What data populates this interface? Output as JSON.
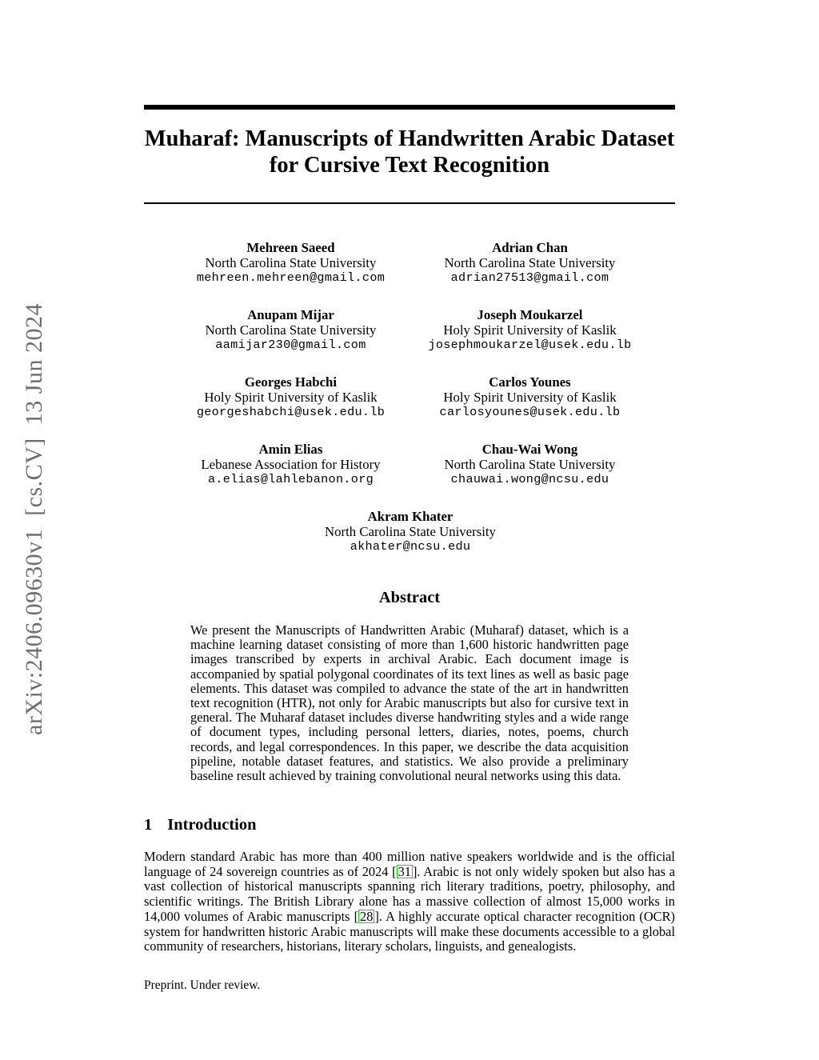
{
  "arxiv_stamp": "arXiv:2406.09630v1  [cs.CV]  13 Jun 2024",
  "title": {
    "line1": "Muharaf: Manuscripts of Handwritten Arabic Dataset",
    "line2": "for Cursive Text Recognition"
  },
  "authors": [
    {
      "name": "Mehreen Saeed",
      "affiliation": "North Carolina State University",
      "email": "mehreen.mehreen@gmail.com"
    },
    {
      "name": "Adrian Chan",
      "affiliation": "North Carolina State University",
      "email": "adrian27513@gmail.com"
    },
    {
      "name": "Anupam Mijar",
      "affiliation": "North Carolina State University",
      "email": "aamijar230@gmail.com"
    },
    {
      "name": "Joseph Moukarzel",
      "affiliation": "Holy Spirit University of Kaslik",
      "email": "josephmoukarzel@usek.edu.lb"
    },
    {
      "name": "Georges Habchi",
      "affiliation": "Holy Spirit University of Kaslik",
      "email": "georgeshabchi@usek.edu.lb"
    },
    {
      "name": "Carlos Younes",
      "affiliation": "Holy Spirit University of Kaslik",
      "email": "carlosyounes@usek.edu.lb"
    },
    {
      "name": "Amin Elias",
      "affiliation": "Lebanese Association for History",
      "email": "a.elias@lahlebanon.org"
    },
    {
      "name": "Chau-Wai Wong",
      "affiliation": "North Carolina State University",
      "email": "chauwai.wong@ncsu.edu"
    },
    {
      "name": "Akram Khater",
      "affiliation": "North Carolina State University",
      "email": "akhater@ncsu.edu"
    }
  ],
  "abstract": {
    "heading": "Abstract",
    "text": "We present the Manuscripts of Handwritten Arabic (Muharaf) dataset, which is a machine learning dataset consisting of more than 1,600 historic handwritten page images transcribed by experts in archival Arabic. Each document image is accompanied by spatial polygonal coordinates of its text lines as well as basic page elements. This dataset was compiled to advance the state of the art in handwritten text recognition (HTR), not only for Arabic manuscripts but also for cursive text in general. The Muharaf dataset includes diverse handwriting styles and a wide range of document types, including personal letters, diaries, notes, poems, church records, and legal correspondences. In this paper, we describe the data acquisition pipeline, notable dataset features, and statistics. We also provide a preliminary baseline result achieved by training convolutional neural networks using this data."
  },
  "introduction": {
    "number": "1",
    "heading": "Introduction",
    "seg1": "Modern standard Arabic has more than 400 million native speakers worldwide and is the official language of 24 sovereign countries as of 2024 [",
    "cite1": "31",
    "seg2": "]. Arabic is not only widely spoken but also has a vast collection of historical manuscripts spanning rich literary traditions, poetry, philosophy, and scientific writings. The British Library alone has a massive collection of almost 15,000 works in 14,000 volumes of Arabic manuscripts [",
    "cite2": "28",
    "seg3": "]. A highly accurate optical character recognition (OCR) system for handwritten historic Arabic manuscripts will make these documents accessible to a global community of researchers, historians, literary scholars, linguists, and genealogists."
  },
  "footer": "Preprint. Under review.",
  "colors": {
    "citation_border": "#00e400",
    "stamp_gray": "#6e6e6e"
  }
}
